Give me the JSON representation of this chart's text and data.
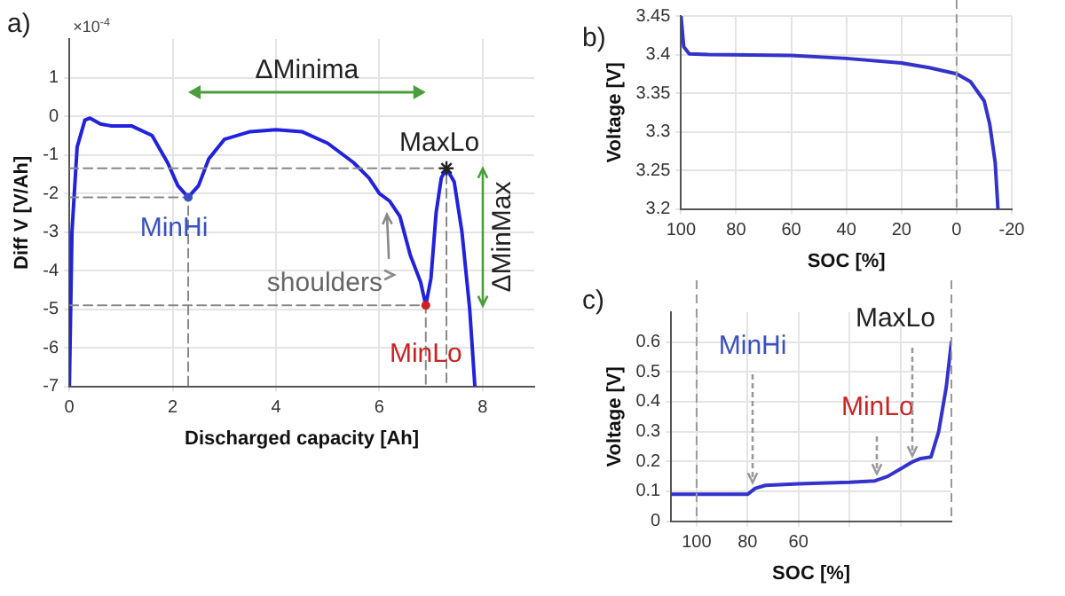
{
  "chart_data": [
    {
      "type": "line",
      "xlabel": "Discharged capacity [Ah]",
      "ylabel": "Diff V [V/Ah]",
      "xlim": [
        0,
        9
      ],
      "ylim": [
        -7,
        2
      ],
      "xticks": [
        0,
        2,
        4,
        6,
        8
      ],
      "yticks": [
        -7,
        -6,
        -5,
        -4,
        -3,
        -2,
        -1,
        0,
        1
      ],
      "grid": true,
      "legend": false,
      "marker": "none",
      "line_style": "solid",
      "series": [
        {
          "type": "line",
          "color": "#888888",
          "line_style": "dashed",
          "x": [
            0,
            2.3,
            2.3
          ],
          "values": [
            -2.1,
            -2.1,
            -7
          ]
        },
        {
          "type": "line",
          "color": "#888888",
          "line_style": "dashed",
          "x": [
            0,
            6.9,
            6.9
          ],
          "values": [
            -4.9,
            -4.9,
            -7
          ]
        },
        {
          "type": "line",
          "color": "#888888",
          "line_style": "dashed",
          "x": [
            0,
            7.3,
            7.3
          ],
          "values": [
            -1.35,
            -1.35,
            -7
          ]
        },
        {
          "color": "#2222dd",
          "x": [
            0,
            0.05,
            0.15,
            0.3,
            0.4,
            0.6,
            0.8,
            1.2,
            1.6,
            1.9,
            2.1,
            2.3,
            2.5,
            2.7,
            3,
            3.5,
            4,
            4.5,
            5,
            5.5,
            5.8,
            6,
            6.2,
            6.4,
            6.6,
            6.8,
            6.9,
            7,
            7.1,
            7.2,
            7.3,
            7.45,
            7.6,
            7.75,
            7.85
          ],
          "values": [
            -7,
            -3,
            -0.8,
            -0.1,
            -0.05,
            -0.2,
            -0.25,
            -0.25,
            -0.5,
            -1.2,
            -1.8,
            -2.1,
            -1.8,
            -1.1,
            -0.6,
            -0.4,
            -0.35,
            -0.4,
            -0.7,
            -1.2,
            -1.6,
            -2,
            -2.2,
            -2.6,
            -3.6,
            -4.3,
            -4.9,
            -4.2,
            -2.5,
            -1.6,
            -1.35,
            -1.7,
            -3,
            -5,
            -7
          ]
        }
      ],
      "annotations": [
        "a)",
        "×10$^{-4}$",
        "ΔMinima",
        "ΔMinMax",
        "shoulders",
        {
          "text": "MinHi",
          "x": 2.3,
          "y": -2.1
        },
        {
          "text": "MinLo",
          "x": 6.9,
          "y": -4.9
        },
        {
          "text": "MaxLo",
          "x": 7.3,
          "y": -1.35
        }
      ]
    },
    {
      "type": "line",
      "xlabel": "SOC [%]",
      "ylabel": "Voltage [V]",
      "xlim": [
        100,
        -20
      ],
      "ylim": [
        3.2,
        3.45
      ],
      "xticks": [
        100,
        80,
        60,
        40,
        20,
        0,
        -20
      ],
      "yticks": [
        3.2,
        3.25,
        3.3,
        3.35,
        3.4,
        3.45
      ],
      "grid": true,
      "legend": false,
      "marker": "none",
      "line_style": "solid",
      "series": [
        {
          "color": "#3333cc",
          "x": [
            100,
            99,
            97,
            90,
            60,
            40,
            20,
            10,
            0,
            -5,
            -10,
            -12,
            -14,
            -15
          ],
          "values": [
            3.45,
            3.41,
            3.401,
            3.4,
            3.399,
            3.395,
            3.389,
            3.383,
            3.375,
            3.365,
            3.34,
            3.31,
            3.26,
            3.2
          ]
        }
      ],
      "ref_lines": [
        {
          "axis": "x",
          "value": 0,
          "color": "#999999",
          "line_style": "dashed"
        }
      ],
      "annotations": [
        "b)"
      ]
    },
    {
      "type": "line",
      "xlabel": "SOC [%]",
      "ylabel": "Voltage [V]",
      "xlim": [
        110,
        0
      ],
      "ylim": [
        0,
        0.7
      ],
      "xticks": [
        100,
        80,
        60,
        {
          "value": 40,
          "label": null
        },
        {
          "value": 20,
          "label": null
        }
      ],
      "yticks": [
        0,
        0.1,
        0.2,
        0.3,
        0.4,
        0.5,
        0.6
      ],
      "grid": true,
      "legend": false,
      "marker": "none",
      "line_style": "solid",
      "series": [
        {
          "color": "#3333cc",
          "x": [
            110,
            80,
            77,
            73,
            60,
            40,
            30,
            25,
            20,
            15,
            12,
            8,
            5,
            2,
            0
          ],
          "values": [
            0.09,
            0.09,
            0.11,
            0.12,
            0.125,
            0.13,
            0.135,
            0.15,
            0.175,
            0.2,
            0.21,
            0.215,
            0.3,
            0.45,
            0.6
          ]
        }
      ],
      "ref_lines": [
        {
          "axis": "x",
          "value": 100,
          "color": "#999999",
          "line_style": "dashed"
        },
        {
          "axis": "x",
          "value": 0,
          "color": "#999999",
          "line_style": "dashed"
        }
      ],
      "annotations": [
        "c)",
        {
          "text": "MinHi",
          "x": 78,
          "y": 0.11
        },
        {
          "text": "MinLo",
          "x": 29,
          "y": 0.14
        },
        {
          "text": "MaxLo",
          "x": 15,
          "y": 0.2
        }
      ]
    }
  ]
}
